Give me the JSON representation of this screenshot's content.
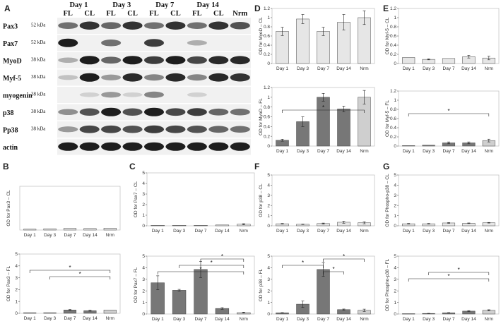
{
  "blot": {
    "label": "A",
    "day_headers": [
      "Day 1",
      "Day 3",
      "Day 7",
      "Day 14"
    ],
    "lane_labels": [
      "FL",
      "CL",
      "FL",
      "CL",
      "FL",
      "CL",
      "FL",
      "CL",
      "Nrm"
    ],
    "rows": [
      {
        "name": "Pax3",
        "kda": "52 kDa"
      },
      {
        "name": "Pax7",
        "kda": "52 kDa"
      },
      {
        "name": "MyoD",
        "kda": "38 kDa"
      },
      {
        "name": "Myf-5",
        "kda": "38 kDa"
      },
      {
        "name": "myogenin",
        "kda": "38 kDa"
      },
      {
        "name": "p38",
        "kda": "38 kDa"
      },
      {
        "name": "Pp38",
        "kda": "38 kDa"
      },
      {
        "name": "actin",
        "kda": ""
      }
    ]
  },
  "chart_data": [
    {
      "panel": "B",
      "type": "bar",
      "categories": [
        "Day 1",
        "Day 3",
        "Day 7",
        "Day 14",
        "Nrm"
      ],
      "ylabel": "OD for Pax3 – CL",
      "ylim": [
        0,
        5
      ],
      "yticks": [],
      "values": [
        0.1,
        0.15,
        0.2,
        0.18,
        0.22
      ],
      "errors": [
        0,
        0,
        0,
        0,
        0
      ],
      "colors": [
        "#e6e6e6",
        "#e6e6e6",
        "#e6e6e6",
        "#e6e6e6",
        "#e6e6e6"
      ],
      "sig": []
    },
    {
      "panel": "B",
      "type": "bar",
      "categories": [
        "Day 1",
        "Day 3",
        "Day 7",
        "Day 14",
        "Nrm"
      ],
      "ylabel": "OD for Pax3 – FL",
      "ylim": [
        0,
        5
      ],
      "yticks": [
        0,
        1,
        2,
        3,
        4,
        5
      ],
      "values": [
        0.05,
        0.05,
        0.28,
        0.22,
        0.28
      ],
      "errors": [
        0,
        0,
        0.04,
        0.04,
        0
      ],
      "colors": [
        "#777777",
        "#777777",
        "#777777",
        "#777777",
        "#cfcfcf"
      ],
      "sig": [
        {
          "from": 0,
          "to": 4,
          "level": 2,
          "label": "*"
        },
        {
          "from": 1,
          "to": 4,
          "level": 1,
          "label": "*"
        }
      ]
    },
    {
      "panel": "C",
      "type": "bar",
      "categories": [
        "Day 1",
        "Day 3",
        "Day 7",
        "Day 14",
        "Nrm"
      ],
      "ylabel": "OD for Pax7 – CL",
      "ylim": [
        0,
        5
      ],
      "yticks": [
        0,
        1,
        2,
        3,
        4,
        5
      ],
      "values": [
        0.05,
        0.05,
        0.05,
        0.08,
        0.15
      ],
      "errors": [
        0,
        0,
        0,
        0,
        0.05
      ],
      "colors": [
        "#e6e6e6",
        "#e6e6e6",
        "#e6e6e6",
        "#e6e6e6",
        "#e6e6e6"
      ],
      "sig": []
    },
    {
      "panel": "C",
      "type": "bar",
      "categories": [
        "Day 1",
        "Day 3",
        "Day 7",
        "Day 14",
        "Nrm"
      ],
      "ylabel": "OD for Pax7 – FL",
      "ylim": [
        0,
        5
      ],
      "yticks": [
        0,
        1,
        2,
        3,
        4,
        5
      ],
      "values": [
        2.7,
        2.05,
        3.85,
        0.48,
        0.12
      ],
      "errors": [
        0.6,
        0.08,
        0.7,
        0.07,
        0.04
      ],
      "colors": [
        "#777777",
        "#777777",
        "#777777",
        "#777777",
        "#cfcfcf"
      ],
      "sig": [
        {
          "from": 0,
          "to": 4,
          "level": 1,
          "label": "*"
        },
        {
          "from": 1,
          "to": 4,
          "level": 2,
          "label": "*"
        },
        {
          "from": 2,
          "to": 4,
          "level": 3,
          "label": "*"
        }
      ]
    },
    {
      "panel": "D",
      "type": "bar",
      "categories": [
        "Day 1",
        "Day 3",
        "Day 7",
        "Day 14",
        "Nrm"
      ],
      "ylabel": "OD for MyoD – CL",
      "ylim": [
        0,
        1.2
      ],
      "yticks": [
        0,
        0.2,
        0.4,
        0.6,
        0.8,
        1,
        1.2
      ],
      "values": [
        0.7,
        0.97,
        0.7,
        0.9,
        1.0
      ],
      "errors": [
        0.09,
        0.1,
        0.09,
        0.17,
        0.15
      ],
      "colors": [
        "#e6e6e6",
        "#e6e6e6",
        "#e6e6e6",
        "#e6e6e6",
        "#e6e6e6"
      ],
      "sig": []
    },
    {
      "panel": "D",
      "type": "bar",
      "categories": [
        "Day 1",
        "Day 3",
        "Day 7",
        "Day 14",
        "Nrm"
      ],
      "ylabel": "OD for MyoD – FL",
      "ylim": [
        0,
        1.2
      ],
      "yticks": [
        0,
        0.2,
        0.4,
        0.6,
        0.8,
        1,
        1.2
      ],
      "values": [
        0.12,
        0.5,
        1.0,
        0.76,
        1.0
      ],
      "errors": [
        0.02,
        0.1,
        0.08,
        0.06,
        0.14
      ],
      "colors": [
        "#777777",
        "#777777",
        "#777777",
        "#777777",
        "#cfcfcf"
      ],
      "sig": [
        {
          "from": 0,
          "to": 4,
          "level": 1,
          "label": "*"
        }
      ]
    },
    {
      "panel": "E",
      "type": "bar",
      "categories": [
        "Day 1",
        "Day 3",
        "Day 7",
        "Day 14",
        "Nrm"
      ],
      "ylabel": "OD for Myf-5 – CL",
      "ylim": [
        0,
        1.2
      ],
      "yticks": [
        0,
        0.2,
        0.4,
        0.6,
        0.8,
        1,
        1.2
      ],
      "values": [
        0.13,
        0.09,
        0.11,
        0.15,
        0.12
      ],
      "errors": [
        0,
        0.01,
        0,
        0.03,
        0.04
      ],
      "colors": [
        "#e6e6e6",
        "#e6e6e6",
        "#e6e6e6",
        "#e6e6e6",
        "#e6e6e6"
      ],
      "sig": []
    },
    {
      "panel": "E",
      "type": "bar",
      "categories": [
        "Day 1",
        "Day 3",
        "Day 7",
        "Day 14",
        "Nrm"
      ],
      "ylabel": "OD for Myf-5 – FL",
      "ylim": [
        0,
        1.2
      ],
      "yticks": [
        0,
        0.2,
        0.4,
        0.6,
        0.8,
        1,
        1.2
      ],
      "values": [
        0.01,
        0.02,
        0.07,
        0.07,
        0.12
      ],
      "errors": [
        0,
        0,
        0.02,
        0.02,
        0.03
      ],
      "colors": [
        "#777777",
        "#777777",
        "#777777",
        "#777777",
        "#cfcfcf"
      ],
      "sig": [
        {
          "from": 0,
          "to": 4,
          "level": 1,
          "label": "*"
        }
      ]
    },
    {
      "panel": "F",
      "type": "bar",
      "categories": [
        "Day 1",
        "Day 3",
        "Day 7",
        "Day 14",
        "Nrm"
      ],
      "ylabel": "OD for p38 – CL",
      "ylim": [
        0,
        5
      ],
      "yticks": [
        0,
        1,
        2,
        3,
        4,
        5
      ],
      "values": [
        0.2,
        0.15,
        0.22,
        0.35,
        0.3
      ],
      "errors": [
        0.03,
        0.02,
        0.05,
        0.1,
        0.1
      ],
      "colors": [
        "#e6e6e6",
        "#e6e6e6",
        "#e6e6e6",
        "#e6e6e6",
        "#e6e6e6"
      ],
      "sig": []
    },
    {
      "panel": "F",
      "type": "bar",
      "categories": [
        "Day 1",
        "Day 3",
        "Day 7",
        "Day 14",
        "Nrm"
      ],
      "ylabel": "OD for p38 – FL",
      "ylim": [
        0,
        5
      ],
      "yticks": [
        0,
        1,
        2,
        3,
        4,
        5
      ],
      "values": [
        0.1,
        0.85,
        3.85,
        0.38,
        0.32
      ],
      "errors": [
        0.02,
        0.28,
        0.6,
        0.05,
        0.1
      ],
      "colors": [
        "#777777",
        "#777777",
        "#777777",
        "#777777",
        "#cfcfcf"
      ],
      "sig": [
        {
          "from": 0,
          "to": 2,
          "level": 2,
          "label": "*"
        },
        {
          "from": 2,
          "to": 3,
          "level": 1,
          "label": "*"
        },
        {
          "from": 2,
          "to": 4,
          "level": 3,
          "label": "*"
        }
      ]
    },
    {
      "panel": "G",
      "type": "bar",
      "categories": [
        "Day 1",
        "Day 3",
        "Day 7",
        "Day 14",
        "Nrm"
      ],
      "ylabel": "OD for Phospho-p38 – CL",
      "ylim": [
        0,
        5
      ],
      "yticks": [
        0,
        1,
        2,
        3,
        4,
        5
      ],
      "values": [
        0.2,
        0.2,
        0.28,
        0.25,
        0.3
      ],
      "errors": [
        0.03,
        0.03,
        0.04,
        0.03,
        0.03
      ],
      "colors": [
        "#e6e6e6",
        "#e6e6e6",
        "#e6e6e6",
        "#e6e6e6",
        "#e6e6e6"
      ],
      "sig": []
    },
    {
      "panel": "G",
      "type": "bar",
      "categories": [
        "Day 1",
        "Day 3",
        "Day 7",
        "Day 14",
        "Nrm"
      ],
      "ylabel": "OD for Phospho-p38 – FL",
      "ylim": [
        0,
        5
      ],
      "yticks": [
        0,
        1,
        2,
        3,
        4,
        5
      ],
      "values": [
        0.03,
        0.05,
        0.1,
        0.25,
        0.32
      ],
      "errors": [
        0,
        0.01,
        0.02,
        0.04,
        0.05
      ],
      "colors": [
        "#777777",
        "#777777",
        "#777777",
        "#777777",
        "#cfcfcf"
      ],
      "sig": [
        {
          "from": 0,
          "to": 4,
          "level": 1,
          "label": "*"
        },
        {
          "from": 1,
          "to": 4,
          "level": 2,
          "label": "*"
        }
      ]
    }
  ]
}
